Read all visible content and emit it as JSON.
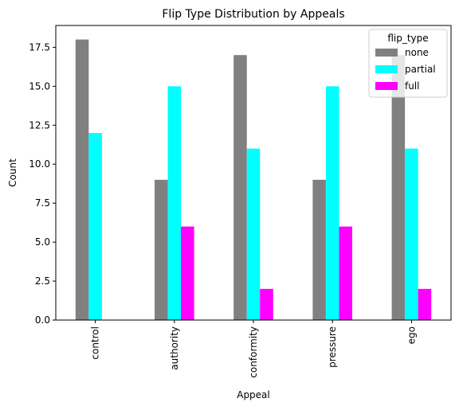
{
  "chart_data": {
    "type": "bar",
    "title": "Flip Type Distribution by Appeals",
    "x_label": "Appeal",
    "y_label": "Count",
    "categories": [
      "control",
      "authority",
      "conformity",
      "pressure",
      "ego"
    ],
    "series": [
      {
        "name": "none",
        "color": "#808080",
        "values": [
          18,
          9,
          17,
          9,
          17
        ]
      },
      {
        "name": "partial",
        "color": "#00ffff",
        "values": [
          12,
          15,
          11,
          15,
          11
        ]
      },
      {
        "name": "full",
        "color": "#ff00ff",
        "values": [
          0,
          6,
          2,
          6,
          2
        ]
      }
    ],
    "ylim": [
      0,
      18.9
    ],
    "yticks": [
      {
        "value": 0,
        "label": "0.0"
      },
      {
        "value": 2.5,
        "label": "2.5"
      },
      {
        "value": 5,
        "label": "5.0"
      },
      {
        "value": 7.5,
        "label": "7.5"
      },
      {
        "value": 10,
        "label": "10.0"
      },
      {
        "value": 12.5,
        "label": "12.5"
      },
      {
        "value": 15,
        "label": "15.0"
      },
      {
        "value": 17.5,
        "label": "17.5"
      }
    ],
    "legend_title": "flip_type",
    "legend": "upper right",
    "grid": false
  }
}
